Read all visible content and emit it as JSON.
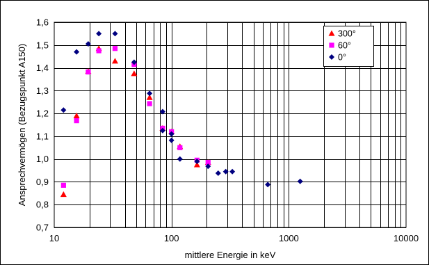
{
  "chart_data": {
    "type": "scatter",
    "x_scale": "log",
    "xlim": [
      10,
      10000
    ],
    "ylim": [
      0.7,
      1.6
    ],
    "grid": true,
    "legend_position": "top-right",
    "xlabel": "mittlere Energie in keV",
    "ylabel": "Ansprechvermögen (Bezugspunkt A150)",
    "x_tick_labels": [
      "10",
      "100",
      "1000",
      "10000"
    ],
    "y_tick_labels": [
      "0,7",
      "0,8",
      "0,9",
      "1,0",
      "1,1",
      "1,2",
      "1,3",
      "1,4",
      "1,5",
      "1,6"
    ],
    "series": [
      {
        "name": "300°",
        "marker": "triangle",
        "color": "#ff0000",
        "points": [
          [
            12,
            0.845
          ],
          [
            15.5,
            1.19
          ],
          [
            19.5,
            1.385
          ],
          [
            24,
            1.485
          ],
          [
            33,
            1.43
          ],
          [
            48,
            1.375
          ],
          [
            65,
            1.27
          ],
          [
            84,
            1.135
          ],
          [
            100,
            1.12
          ],
          [
            118,
            1.055
          ],
          [
            165,
            0.975
          ],
          [
            205,
            0.985
          ]
        ]
      },
      {
        "name": "60°",
        "marker": "square",
        "color": "#ff00ff",
        "points": [
          [
            12,
            0.885
          ],
          [
            15.5,
            1.168
          ],
          [
            19.5,
            1.382
          ],
          [
            24,
            1.475
          ],
          [
            33,
            1.485
          ],
          [
            48,
            1.415
          ],
          [
            65,
            1.243
          ],
          [
            84,
            1.135
          ],
          [
            100,
            1.12
          ],
          [
            118,
            1.05
          ],
          [
            165,
            0.995
          ],
          [
            205,
            0.985
          ]
        ]
      },
      {
        "name": "0°",
        "marker": "diamond",
        "color": "#000080",
        "points": [
          [
            12,
            1.215
          ],
          [
            15.5,
            1.47
          ],
          [
            19.5,
            1.505
          ],
          [
            24,
            1.55
          ],
          [
            33,
            1.55
          ],
          [
            48,
            1.425
          ],
          [
            65,
            1.288
          ],
          [
            84,
            1.208
          ],
          [
            84,
            1.125
          ],
          [
            100,
            1.11
          ],
          [
            100,
            1.082
          ],
          [
            118,
            1.0
          ],
          [
            165,
            0.99
          ],
          [
            205,
            0.968
          ],
          [
            250,
            0.938
          ],
          [
            290,
            0.945
          ],
          [
            330,
            0.945
          ],
          [
            662,
            0.888
          ],
          [
            1250,
            0.902
          ]
        ]
      }
    ]
  }
}
